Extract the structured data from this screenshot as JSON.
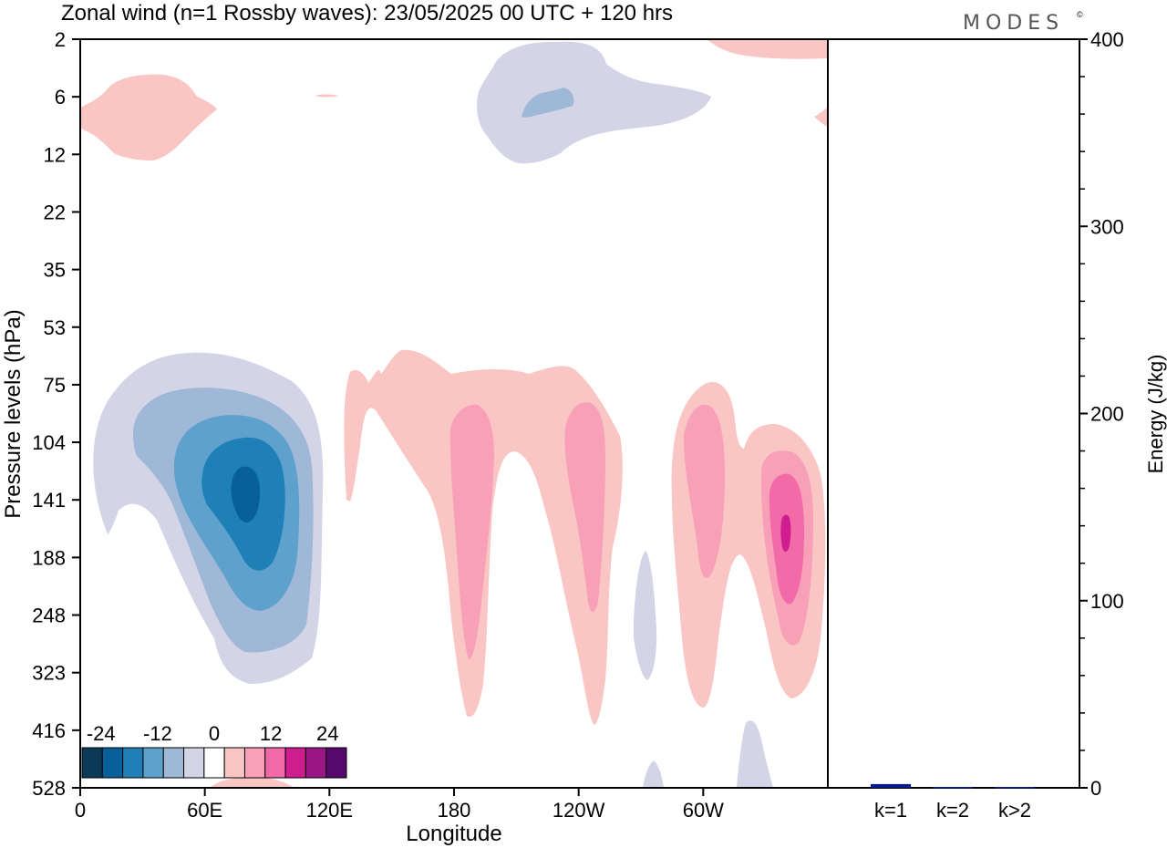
{
  "title": "Zonal wind (n=1 Rossby waves):  23/05/2025  00 UTC  + 120 hrs",
  "logo": "MODES",
  "logo_mark": "©",
  "chart_data": [
    {
      "type": "heatmap",
      "xlabel": "Longitude",
      "ylabel": "Pressure levels (hPa)",
      "x_ticks": [
        "0",
        "60E",
        "120E",
        "180",
        "120W",
        "60W"
      ],
      "x_tick_degrees": [
        0,
        60,
        120,
        180,
        240,
        300
      ],
      "xlim": [
        0,
        360
      ],
      "y_ticks": [
        "2",
        "6",
        "12",
        "22",
        "35",
        "53",
        "75",
        "104",
        "141",
        "188",
        "248",
        "323",
        "416",
        "528"
      ],
      "colorbar": {
        "labels": [
          "-24",
          "-12",
          "0",
          "12",
          "24"
        ],
        "label_positions": [
          -24,
          -12,
          0,
          12,
          24
        ],
        "levels": [
          -28,
          -24,
          -20,
          -16,
          -12,
          -8,
          -4,
          4,
          8,
          12,
          16,
          20,
          24,
          28
        ],
        "colors": [
          "#0b3a57",
          "#08609a",
          "#1f80b8",
          "#5fa1cd",
          "#a0b8d8",
          "#d3d5e7",
          "#ffffff",
          "#f9c6c4",
          "#f7a0b8",
          "#f26aa7",
          "#ce1d8e",
          "#9b1787",
          "#56096d"
        ]
      },
      "features": [
        {
          "kind": "negative",
          "center_lon": 80,
          "center_level": "141",
          "min_value": -24
        },
        {
          "kind": "positive",
          "center_lon": 187,
          "center_level": "141",
          "max_value": 12
        },
        {
          "kind": "positive",
          "center_lon": 242,
          "center_level": "141",
          "max_value": 12
        },
        {
          "kind": "positive",
          "center_lon": 300,
          "center_level": "141",
          "max_value": 12
        },
        {
          "kind": "positive",
          "center_lon": 340,
          "center_level": "141",
          "max_value": 20
        },
        {
          "kind": "negative",
          "center_lon": 230,
          "center_level": "6",
          "min_value": -8
        },
        {
          "kind": "positive",
          "center_lon": 30,
          "center_level": "6",
          "max_value": 4
        }
      ]
    },
    {
      "type": "bar",
      "ylabel": "Energy (J/kg)",
      "categories": [
        "k=1",
        "k=2",
        "k>2"
      ],
      "values": [
        2,
        0.5,
        0.5
      ],
      "ylim": [
        0,
        400
      ],
      "y_ticks": [
        "0",
        "100",
        "200",
        "300",
        "400"
      ],
      "bar_color": "#0a1a8a"
    }
  ]
}
